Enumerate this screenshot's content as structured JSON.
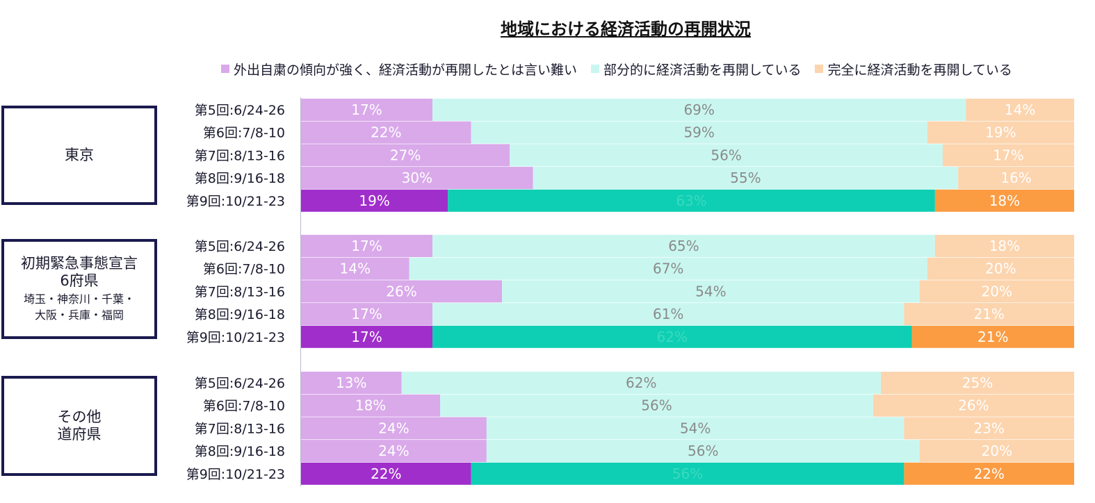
{
  "chart_data": {
    "type": "bar",
    "stacked": "100%",
    "orientation": "horizontal",
    "title": "地域における経済活動の再開状況",
    "legend": [
      {
        "label": "外出自粛の傾向が強く、経済活動が再開したとは言い難い",
        "color": "#d9a9ea"
      },
      {
        "label": "部分的に経済活動を再開している",
        "color": "#c9f7f0"
      },
      {
        "label": "完全に経済活動を再開している",
        "color": "#fcd4ae"
      }
    ],
    "latest_colors": [
      "#a02ecb",
      "#0ecfb3",
      "#fb9c43"
    ],
    "groups": [
      {
        "name": "東京",
        "sub": "",
        "rows": [
          {
            "label": "第5回:6/24-26",
            "values": [
              17,
              69,
              14
            ]
          },
          {
            "label": "第6回:7/8-10",
            "values": [
              22,
              59,
              19
            ]
          },
          {
            "label": "第7回:8/13-16",
            "values": [
              27,
              56,
              17
            ]
          },
          {
            "label": "第8回:9/16-18",
            "values": [
              30,
              55,
              16
            ]
          },
          {
            "label": "第9回:10/21-23",
            "values": [
              19,
              63,
              18
            ]
          }
        ]
      },
      {
        "name": "初期緊急事態宣言\n6府県",
        "sub": "埼玉・神奈川・千葉・\n大阪・兵庫・福岡",
        "rows": [
          {
            "label": "第5回:6/24-26",
            "values": [
              17,
              65,
              18
            ]
          },
          {
            "label": "第6回:7/8-10",
            "values": [
              14,
              67,
              20
            ]
          },
          {
            "label": "第7回:8/13-16",
            "values": [
              26,
              54,
              20
            ]
          },
          {
            "label": "第8回:9/16-18",
            "values": [
              17,
              61,
              21
            ]
          },
          {
            "label": "第9回:10/21-23",
            "values": [
              17,
              62,
              21
            ]
          }
        ]
      },
      {
        "name": "その他\n道府県",
        "sub": "",
        "rows": [
          {
            "label": "第5回:6/24-26",
            "values": [
              13,
              62,
              25
            ]
          },
          {
            "label": "第6回:7/8-10",
            "values": [
              18,
              56,
              26
            ]
          },
          {
            "label": "第7回:8/13-16",
            "values": [
              24,
              54,
              23
            ]
          },
          {
            "label": "第8回:9/16-18",
            "values": [
              24,
              56,
              20
            ]
          },
          {
            "label": "第9回:10/21-23",
            "values": [
              22,
              56,
              22
            ]
          }
        ]
      }
    ]
  }
}
